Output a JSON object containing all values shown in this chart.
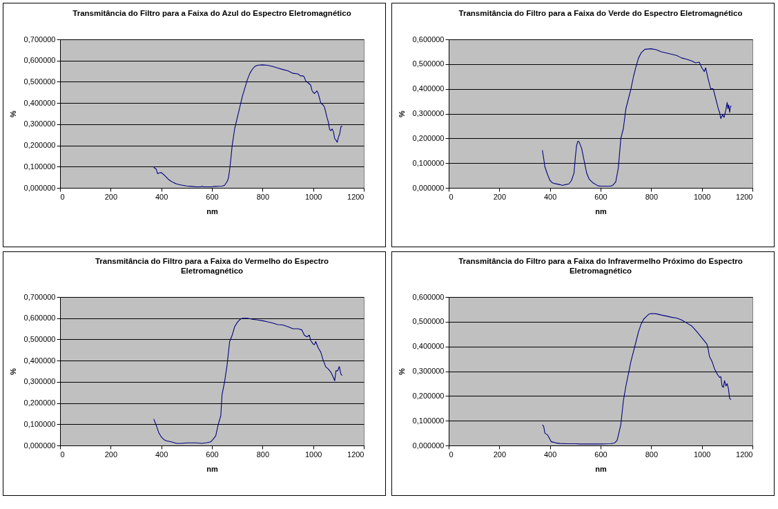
{
  "chart_data": [
    {
      "type": "line",
      "title": "Transmitância do Filtro para a Faixa do Azul do Espectro Eletromagnético",
      "xlabel": "nm",
      "ylabel": "%",
      "xlim": [
        0,
        1200
      ],
      "xticks": [
        0,
        200,
        400,
        600,
        800,
        1000,
        1200
      ],
      "ylim": [
        0,
        0.7
      ],
      "yticks": [
        {
          "value": 0,
          "label": "0,000000"
        },
        {
          "value": 0.1,
          "label": "0,100000"
        },
        {
          "value": 0.2,
          "label": "0,200000"
        },
        {
          "value": 0.3,
          "label": "0,300000"
        },
        {
          "value": 0.4,
          "label": "0,400000"
        },
        {
          "value": 0.5,
          "label": "0,500000"
        },
        {
          "value": 0.6,
          "label": "0,600000"
        },
        {
          "value": 0.7,
          "label": "0,700000"
        }
      ],
      "grid": "y",
      "x": [
        370,
        380,
        385,
        390,
        400,
        410,
        420,
        430,
        440,
        450,
        460,
        480,
        500,
        520,
        540,
        555,
        560,
        570,
        600,
        610,
        640,
        650,
        660,
        665,
        670,
        675,
        680,
        690,
        700,
        710,
        720,
        730,
        740,
        750,
        760,
        770,
        780,
        800,
        820,
        840,
        860,
        880,
        900,
        920,
        940,
        950,
        960,
        965,
        970,
        980,
        990,
        995,
        1000,
        1005,
        1015,
        1020,
        1030,
        1040,
        1045,
        1055,
        1060,
        1065,
        1070,
        1075,
        1080,
        1085,
        1090,
        1095,
        1100,
        1105,
        1110,
        1115
      ],
      "series": [
        {
          "color": "#000080",
          "values": [
            0.097,
            0.088,
            0.067,
            0.07,
            0.072,
            0.062,
            0.05,
            0.038,
            0.03,
            0.024,
            0.019,
            0.013,
            0.009,
            0.007,
            0.005,
            0.005,
            0.007,
            0.005,
            0.005,
            0.007,
            0.008,
            0.012,
            0.03,
            0.045,
            0.085,
            0.14,
            0.2,
            0.28,
            0.33,
            0.38,
            0.43,
            0.47,
            0.51,
            0.54,
            0.56,
            0.573,
            0.578,
            0.58,
            0.578,
            0.572,
            0.565,
            0.558,
            0.552,
            0.54,
            0.537,
            0.528,
            0.528,
            0.522,
            0.505,
            0.495,
            0.485,
            0.46,
            0.45,
            0.445,
            0.457,
            0.445,
            0.4,
            0.39,
            0.38,
            0.33,
            0.31,
            0.275,
            0.27,
            0.278,
            0.265,
            0.232,
            0.225,
            0.215,
            0.24,
            0.255,
            0.29,
            0.29
          ]
        }
      ]
    },
    {
      "type": "line",
      "title": "Transmitância do Filtro para a Faixa do Verde do Espectro Eletromagnético",
      "xlabel": "nm",
      "ylabel": "%",
      "xlim": [
        0,
        1200
      ],
      "xticks": [
        0,
        200,
        400,
        600,
        800,
        1000,
        1200
      ],
      "ylim": [
        0,
        0.6
      ],
      "yticks": [
        {
          "value": 0,
          "label": "0,000000"
        },
        {
          "value": 0.1,
          "label": "0,100000"
        },
        {
          "value": 0.2,
          "label": "0,200000"
        },
        {
          "value": 0.3,
          "label": "0,300000"
        },
        {
          "value": 0.4,
          "label": "0,400000"
        },
        {
          "value": 0.5,
          "label": "0,500000"
        },
        {
          "value": 0.6,
          "label": "0,600000"
        }
      ],
      "grid": "y",
      "x": [
        370,
        375,
        380,
        390,
        400,
        410,
        420,
        440,
        450,
        460,
        475,
        485,
        495,
        500,
        505,
        510,
        515,
        525,
        535,
        545,
        555,
        570,
        590,
        600,
        640,
        650,
        660,
        670,
        680,
        690,
        700,
        710,
        720,
        730,
        740,
        750,
        760,
        775,
        800,
        820,
        840,
        860,
        880,
        900,
        920,
        940,
        960,
        975,
        990,
        1000,
        1010,
        1015,
        1025,
        1035,
        1045,
        1055,
        1065,
        1070,
        1075,
        1082,
        1088,
        1095,
        1100,
        1103,
        1106,
        1110,
        1113,
        1117
      ],
      "series": [
        {
          "color": "#000080",
          "values": [
            0.152,
            0.12,
            0.085,
            0.055,
            0.03,
            0.02,
            0.017,
            0.013,
            0.01,
            0.013,
            0.016,
            0.03,
            0.06,
            0.12,
            0.17,
            0.188,
            0.186,
            0.16,
            0.11,
            0.06,
            0.035,
            0.02,
            0.008,
            0.007,
            0.007,
            0.012,
            0.025,
            0.08,
            0.2,
            0.24,
            0.32,
            0.36,
            0.4,
            0.45,
            0.49,
            0.525,
            0.545,
            0.56,
            0.562,
            0.558,
            0.55,
            0.545,
            0.54,
            0.535,
            0.525,
            0.52,
            0.513,
            0.505,
            0.508,
            0.485,
            0.47,
            0.485,
            0.44,
            0.4,
            0.4,
            0.36,
            0.32,
            0.305,
            0.28,
            0.295,
            0.285,
            0.315,
            0.345,
            0.32,
            0.335,
            0.305,
            0.33,
            0.33
          ]
        }
      ]
    },
    {
      "type": "line",
      "title": "Transmitância do Filtro para a Faixa do Vermelho do Espectro Eletromagnético",
      "xlabel": "nm",
      "ylabel": "%",
      "xlim": [
        0,
        1200
      ],
      "xticks": [
        0,
        200,
        400,
        600,
        800,
        1000,
        1200
      ],
      "ylim": [
        0,
        0.7
      ],
      "yticks": [
        {
          "value": 0,
          "label": "0,000000"
        },
        {
          "value": 0.1,
          "label": "0,100000"
        },
        {
          "value": 0.2,
          "label": "0,200000"
        },
        {
          "value": 0.3,
          "label": "0,300000"
        },
        {
          "value": 0.4,
          "label": "0,400000"
        },
        {
          "value": 0.5,
          "label": "0,500000"
        },
        {
          "value": 0.6,
          "label": "0,600000"
        },
        {
          "value": 0.7,
          "label": "0,700000"
        }
      ],
      "grid": "y",
      "x": [
        370,
        380,
        390,
        400,
        410,
        420,
        440,
        460,
        480,
        500,
        540,
        560,
        580,
        595,
        605,
        615,
        625,
        635,
        640,
        650,
        660,
        670,
        680,
        690,
        700,
        710,
        720,
        740,
        760,
        780,
        800,
        820,
        840,
        860,
        880,
        900,
        920,
        940,
        955,
        965,
        975,
        985,
        990,
        1000,
        1005,
        1010,
        1020,
        1030,
        1040,
        1050,
        1060,
        1070,
        1080,
        1085,
        1090,
        1097,
        1103,
        1110,
        1115
      ],
      "series": [
        {
          "color": "#000080",
          "values": [
            0.125,
            0.095,
            0.06,
            0.04,
            0.028,
            0.022,
            0.017,
            0.01,
            0.01,
            0.012,
            0.012,
            0.01,
            0.013,
            0.017,
            0.03,
            0.045,
            0.1,
            0.14,
            0.24,
            0.3,
            0.38,
            0.49,
            0.52,
            0.56,
            0.58,
            0.593,
            0.6,
            0.6,
            0.595,
            0.592,
            0.588,
            0.583,
            0.577,
            0.57,
            0.568,
            0.56,
            0.55,
            0.55,
            0.545,
            0.52,
            0.512,
            0.52,
            0.495,
            0.478,
            0.475,
            0.49,
            0.46,
            0.44,
            0.4,
            0.37,
            0.36,
            0.345,
            0.32,
            0.305,
            0.352,
            0.352,
            0.372,
            0.335,
            0.33
          ]
        }
      ]
    },
    {
      "type": "line",
      "title": "Transmitância do Filtro para a Faixa do Infravermelho Próximo do Espectro Eletromagnético",
      "xlabel": "nm",
      "ylabel": "%",
      "xlim": [
        0,
        1200
      ],
      "xticks": [
        0,
        200,
        400,
        600,
        800,
        1000,
        1200
      ],
      "ylim": [
        0,
        0.6
      ],
      "yticks": [
        {
          "value": 0,
          "label": "0,000000"
        },
        {
          "value": 0.1,
          "label": "0,100000"
        },
        {
          "value": 0.2,
          "label": "0,200000"
        },
        {
          "value": 0.3,
          "label": "0,300000"
        },
        {
          "value": 0.4,
          "label": "0,400000"
        },
        {
          "value": 0.5,
          "label": "0,500000"
        },
        {
          "value": 0.6,
          "label": "0,600000"
        }
      ],
      "grid": "y",
      "x": [
        370,
        375,
        380,
        390,
        400,
        405,
        415,
        425,
        440,
        470,
        500,
        520,
        560,
        600,
        640,
        655,
        665,
        670,
        680,
        690,
        700,
        710,
        720,
        730,
        740,
        750,
        760,
        770,
        780,
        790,
        800,
        820,
        840,
        860,
        880,
        900,
        920,
        940,
        960,
        980,
        1000,
        1020,
        1025,
        1030,
        1040,
        1050,
        1060,
        1070,
        1075,
        1080,
        1085,
        1090,
        1095,
        1100,
        1105,
        1110,
        1115
      ],
      "series": [
        {
          "color": "#000080",
          "values": [
            0.083,
            0.078,
            0.05,
            0.043,
            0.025,
            0.015,
            0.013,
            0.01,
            0.008,
            0.007,
            0.007,
            0.006,
            0.006,
            0.006,
            0.007,
            0.01,
            0.02,
            0.04,
            0.085,
            0.18,
            0.24,
            0.29,
            0.34,
            0.38,
            0.42,
            0.46,
            0.49,
            0.51,
            0.52,
            0.53,
            0.533,
            0.532,
            0.527,
            0.523,
            0.518,
            0.515,
            0.507,
            0.495,
            0.483,
            0.46,
            0.435,
            0.41,
            0.39,
            0.36,
            0.34,
            0.31,
            0.29,
            0.275,
            0.278,
            0.24,
            0.235,
            0.262,
            0.24,
            0.25,
            0.23,
            0.19,
            0.185
          ]
        }
      ]
    }
  ]
}
